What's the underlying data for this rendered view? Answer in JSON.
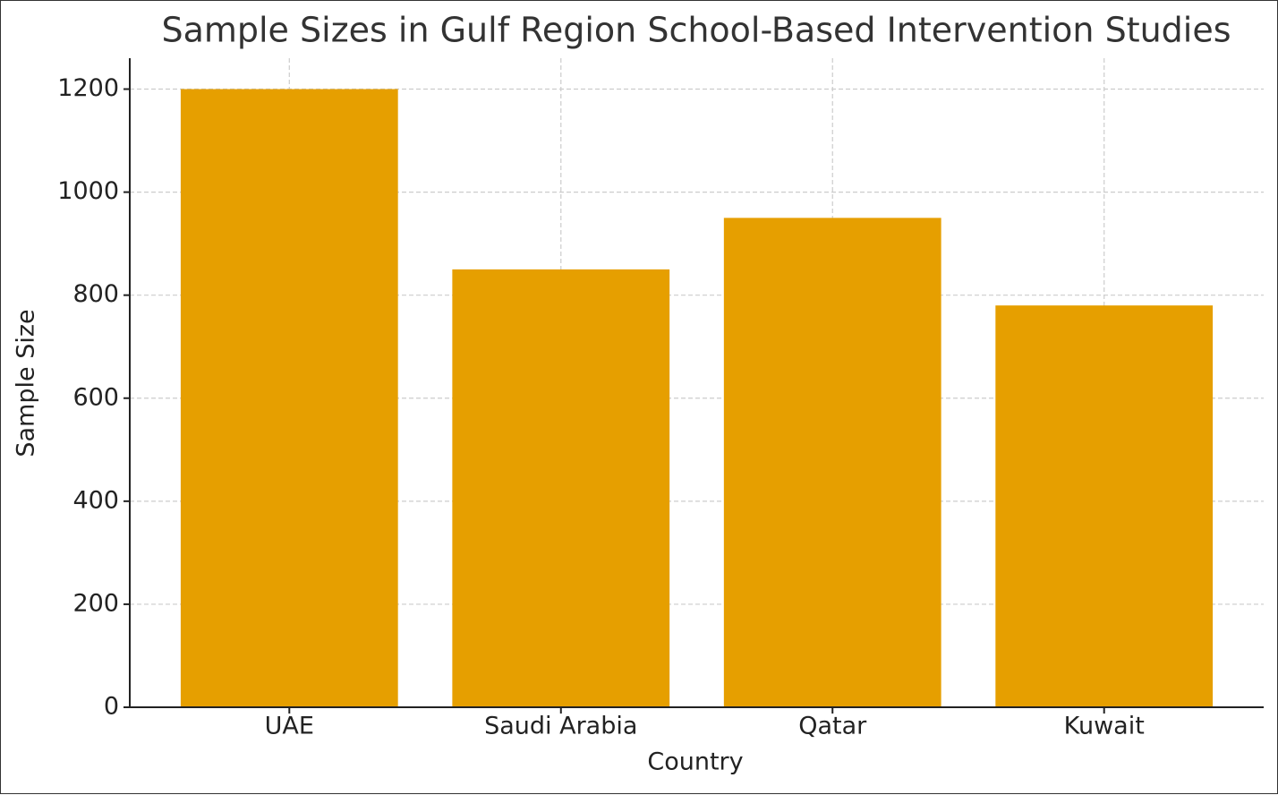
{
  "chart_data": {
    "type": "bar",
    "title": "Sample Sizes in Gulf Region School-Based Intervention Studies",
    "x_label": "Country",
    "y_label": "Sample Size",
    "categories": [
      "UAE",
      "Saudi Arabia",
      "Qatar",
      "Kuwait"
    ],
    "values": [
      1200,
      850,
      950,
      780
    ],
    "color": "#e69f00",
    "ylim": [
      0,
      1260
    ],
    "yticks": [
      0,
      200,
      400,
      600,
      800,
      1000,
      1200
    ],
    "grid": true
  }
}
